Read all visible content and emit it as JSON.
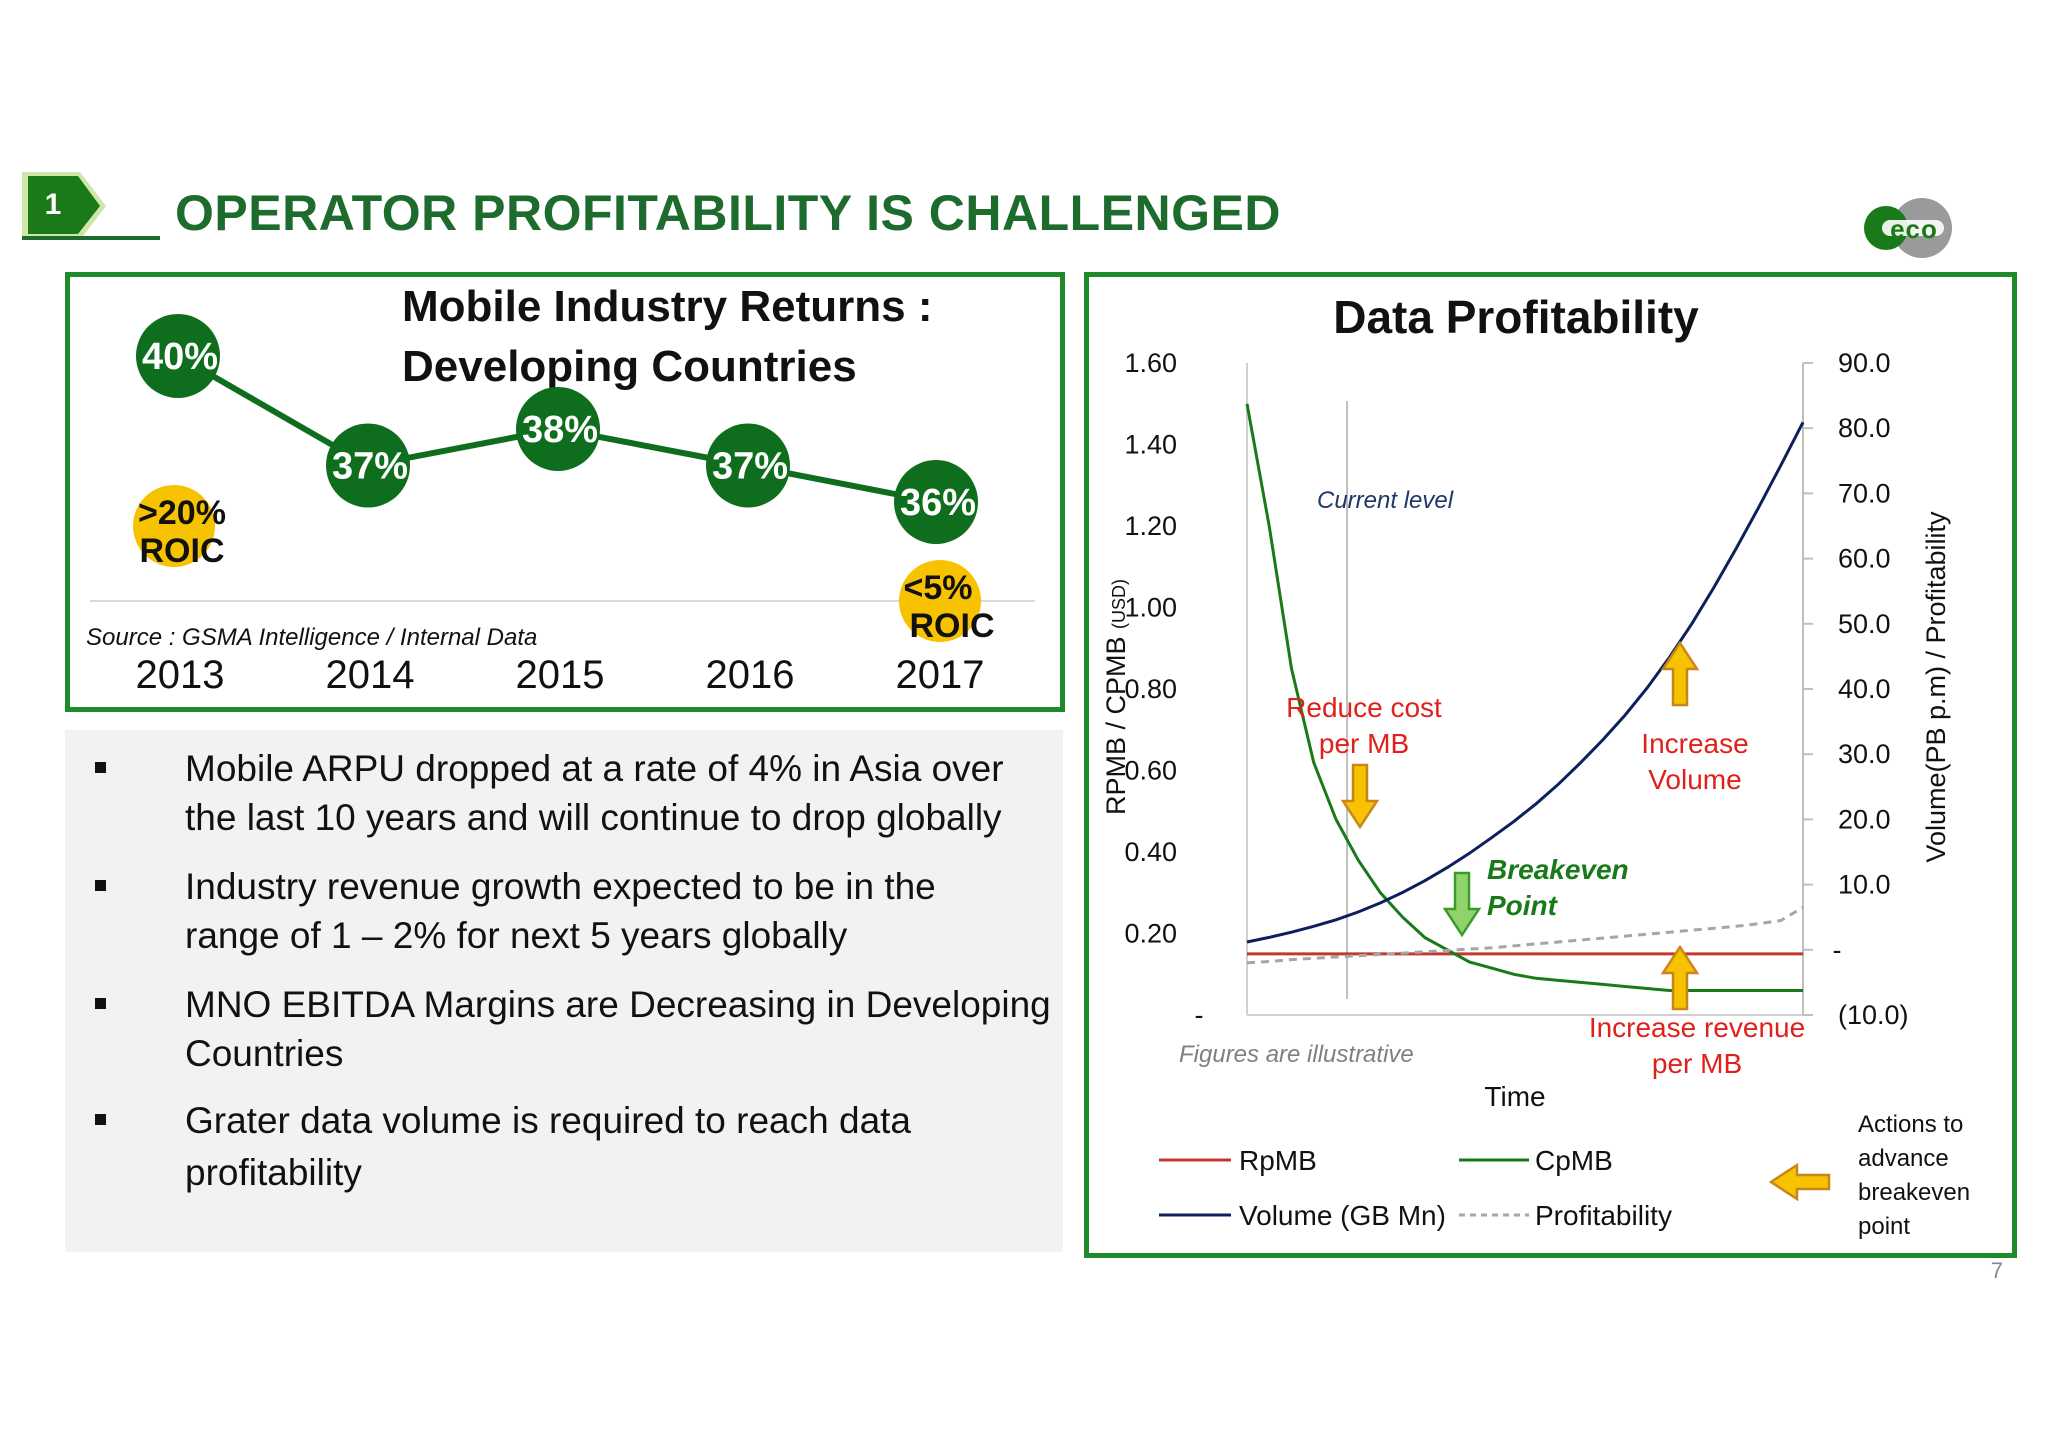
{
  "header": {
    "badge_number": "1",
    "title": "OPERATOR PROFITABILITY IS CHALLENGED",
    "logo_text": "eco"
  },
  "left_chart": {
    "title_line1": "Mobile Industry Returns :",
    "title_line2": "Developing Countries",
    "source": "Source : GSMA Intelligence / Internal Data",
    "chart_data": {
      "type": "line",
      "categories": [
        "2013",
        "2014",
        "2015",
        "2016",
        "2017"
      ],
      "series": [
        {
          "name": "",
          "values": [
            40,
            37,
            38,
            37,
            36
          ],
          "labels": [
            "40%",
            "37%",
            "38%",
            "37%",
            "36%"
          ],
          "color": "#0f6e1e"
        }
      ],
      "annotations": [
        {
          "category": "2013",
          "text_line1": ">20%",
          "text_line2": "ROIC",
          "color": "#f7c200"
        },
        {
          "category": "2017",
          "text_line1": "<5%",
          "text_line2": "ROIC",
          "color": "#f7c200"
        }
      ]
    }
  },
  "bullets": [
    {
      "line1": "Mobile ARPU dropped at a rate of 4% in Asia over",
      "line2": "the last 10 years and will continue to drop globally"
    },
    {
      "line1": "Industry revenue growth expected to be in the",
      "line2": "range of 1 – 2% for next 5 years globally"
    },
    {
      "line1": "MNO EBITDA Margins are Decreasing in Developing",
      "line2": "Countries"
    },
    {
      "line1": "Grater data volume is required to reach data",
      "line2": "profitability"
    }
  ],
  "right_chart": {
    "chart_data": {
      "type": "line",
      "title": "Data Profitability",
      "xlabel": "Time",
      "ylabel_left": "RPMB / CPMB",
      "ylabel_left_unit": "(USD)",
      "ylabel_right": "Volume(PB p.m) / Profitability",
      "left_ticks": [
        "1.60",
        "1.40",
        "1.20",
        "1.00",
        "0.80",
        "0.60",
        "0.40",
        "0.20",
        "-"
      ],
      "right_ticks": [
        "90.0",
        "80.0",
        "70.0",
        "60.0",
        "50.0",
        "40.0",
        "30.0",
        "20.0",
        "10.0",
        "-",
        "(10.0)"
      ],
      "ylim_left": [
        0,
        1.6
      ],
      "ylim_right": [
        -10,
        90
      ],
      "x": [
        0.0,
        0.04,
        0.08,
        0.12,
        0.16,
        0.2,
        0.24,
        0.28,
        0.32,
        0.36,
        0.4,
        0.44,
        0.48,
        0.52,
        0.56,
        0.6,
        0.64,
        0.68,
        0.72,
        0.76,
        0.8,
        0.84,
        0.88,
        0.92,
        0.96,
        1.0
      ],
      "series": [
        {
          "name": "RpMB",
          "axis": "left",
          "color": "#c0392b",
          "dash": false,
          "values": [
            0.15,
            0.15,
            0.15,
            0.15,
            0.15,
            0.15,
            0.15,
            0.15,
            0.15,
            0.15,
            0.15,
            0.15,
            0.15,
            0.15,
            0.15,
            0.15,
            0.15,
            0.15,
            0.15,
            0.15,
            0.15,
            0.15,
            0.15,
            0.15,
            0.15,
            0.15
          ]
        },
        {
          "name": "CpMB",
          "axis": "left",
          "color": "#1a7a1a",
          "dash": false,
          "values": [
            1.5,
            1.2,
            0.85,
            0.62,
            0.48,
            0.38,
            0.3,
            0.24,
            0.19,
            0.16,
            0.13,
            0.115,
            0.1,
            0.09,
            0.085,
            0.08,
            0.075,
            0.07,
            0.065,
            0.06,
            0.06,
            0.06,
            0.06,
            0.06,
            0.06,
            0.06
          ]
        },
        {
          "name": "Volume (GB Mn)",
          "axis": "right",
          "color": "#0d1f5c",
          "dash": false,
          "values": [
            1.2,
            1.9,
            2.7,
            3.6,
            4.6,
            5.8,
            7.2,
            8.8,
            10.6,
            12.6,
            14.8,
            17.2,
            19.7,
            22.4,
            25.4,
            28.7,
            32.2,
            36.0,
            40.2,
            44.9,
            50.0,
            55.6,
            61.6,
            67.8,
            74.3,
            80.9
          ]
        },
        {
          "name": "Profitability",
          "axis": "right",
          "color": "#a6a6a6",
          "dash": true,
          "values": [
            -2.0,
            -1.8,
            -1.5,
            -1.3,
            -1.1,
            -0.9,
            -0.7,
            -0.5,
            -0.3,
            -0.1,
            0.1,
            0.3,
            0.6,
            0.9,
            1.2,
            1.5,
            1.8,
            2.1,
            2.4,
            2.7,
            3.0,
            3.3,
            3.6,
            4.0,
            4.5,
            6.5
          ]
        }
      ],
      "current_level_x": 0.18,
      "current_level_label": "Current level",
      "note": "Figures are illustrative",
      "legend_placement": "bottom"
    },
    "annotations": {
      "reduce_cost_line1": "Reduce cost",
      "reduce_cost_line2": "per MB",
      "increase_volume_line1": "Increase",
      "increase_volume_line2": "Volume",
      "breakeven_line1": "Breakeven",
      "breakeven_line2": "Point",
      "increase_revenue_line1": "Increase revenue",
      "increase_revenue_line2": "per MB",
      "actions_line1": "Actions to",
      "actions_line2": "advance",
      "actions_line3": "breakeven",
      "actions_line4": "point"
    },
    "colors": {
      "annotation_red": "#e0211b",
      "arrow_fill": "#f7c200",
      "arrow_stroke": "#c8861a",
      "breakeven_green": "#1a7a1a"
    }
  },
  "page_number": "7"
}
